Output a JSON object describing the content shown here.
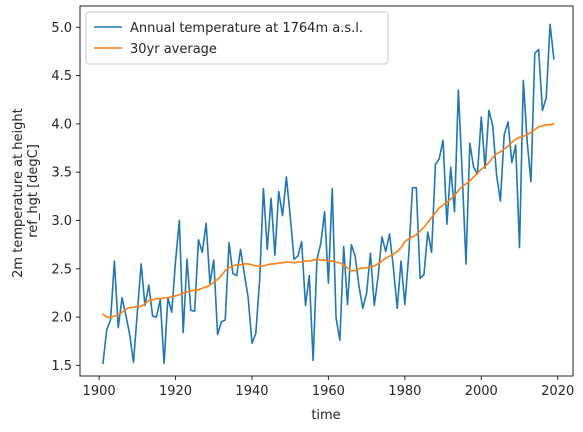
{
  "chart_data": {
    "type": "line",
    "xlabel": "time",
    "ylabel_lines": [
      "2m temperature at height",
      "ref_hgt [degC]"
    ],
    "xlim": [
      1895,
      2024
    ],
    "ylim": [
      1.39,
      5.22
    ],
    "xticks": [
      1900,
      1920,
      1940,
      1960,
      1980,
      2000,
      2020
    ],
    "yticks": [
      1.5,
      2.0,
      2.5,
      3.0,
      3.5,
      4.0,
      4.5,
      5.0
    ],
    "ytick_labels": [
      "1.5",
      "2.0",
      "2.5",
      "3.0",
      "3.5",
      "4.0",
      "4.5",
      "5.0"
    ],
    "grid": false,
    "legend_position": "upper-left",
    "x_start": 1901,
    "series": [
      {
        "name": "Annual temperature at 1764m a.s.l.",
        "color": "#1f77b4",
        "values": [
          1.52,
          1.87,
          1.97,
          2.58,
          1.89,
          2.2,
          2.02,
          1.82,
          1.53,
          2.05,
          2.55,
          2.12,
          2.33,
          2.01,
          2.0,
          2.18,
          1.52,
          2.2,
          2.05,
          2.58,
          3.0,
          1.84,
          2.6,
          2.07,
          2.06,
          2.8,
          2.67,
          2.97,
          2.35,
          2.59,
          1.82,
          1.95,
          1.97,
          2.77,
          2.45,
          2.43,
          2.7,
          2.45,
          2.2,
          1.73,
          1.83,
          2.38,
          3.33,
          2.7,
          3.23,
          2.64,
          3.3,
          3.05,
          3.45,
          3.05,
          2.6,
          2.63,
          2.78,
          2.12,
          2.43,
          1.55,
          2.6,
          2.76,
          3.09,
          2.35,
          3.33,
          1.99,
          1.76,
          2.73,
          2.13,
          2.75,
          2.63,
          2.32,
          2.09,
          2.25,
          2.66,
          2.12,
          2.42,
          2.83,
          2.68,
          2.86,
          2.51,
          2.09,
          2.58,
          2.13,
          2.63,
          3.34,
          3.34,
          2.4,
          2.44,
          2.88,
          2.67,
          3.58,
          3.64,
          3.83,
          2.96,
          3.55,
          3.09,
          4.35,
          3.5,
          2.55,
          3.8,
          3.55,
          3.48,
          4.07,
          3.54,
          4.14,
          3.98,
          3.47,
          3.2,
          3.89,
          4.02,
          3.6,
          3.78,
          2.72,
          4.45,
          3.82,
          3.4,
          4.73,
          4.77,
          4.14,
          4.27,
          5.03,
          4.67
        ]
      },
      {
        "name": "30yr average",
        "color": "#ff7f0e",
        "values": [
          2.03,
          2.0,
          2.0,
          2.01,
          2.02,
          2.05,
          2.08,
          2.1,
          2.1,
          2.11,
          2.11,
          2.14,
          2.17,
          2.18,
          2.19,
          2.19,
          2.2,
          2.2,
          2.21,
          2.22,
          2.23,
          2.25,
          2.26,
          2.27,
          2.28,
          2.28,
          2.3,
          2.31,
          2.33,
          2.36,
          2.39,
          2.43,
          2.48,
          2.51,
          2.53,
          2.54,
          2.54,
          2.55,
          2.55,
          2.54,
          2.53,
          2.53,
          2.53,
          2.54,
          2.55,
          2.55,
          2.56,
          2.56,
          2.57,
          2.57,
          2.56,
          2.57,
          2.57,
          2.58,
          2.58,
          2.59,
          2.6,
          2.59,
          2.59,
          2.58,
          2.58,
          2.57,
          2.56,
          2.54,
          2.51,
          2.48,
          2.48,
          2.5,
          2.51,
          2.51,
          2.52,
          2.53,
          2.55,
          2.58,
          2.61,
          2.63,
          2.65,
          2.68,
          2.72,
          2.78,
          2.81,
          2.83,
          2.85,
          2.89,
          2.93,
          2.98,
          3.03,
          3.08,
          3.13,
          3.16,
          3.19,
          3.22,
          3.26,
          3.31,
          3.35,
          3.38,
          3.41,
          3.45,
          3.49,
          3.53,
          3.56,
          3.6,
          3.65,
          3.69,
          3.71,
          3.74,
          3.77,
          3.81,
          3.84,
          3.86,
          3.87,
          3.89,
          3.91,
          3.94,
          3.97,
          3.98,
          3.99,
          3.99,
          4.0
        ]
      }
    ]
  }
}
